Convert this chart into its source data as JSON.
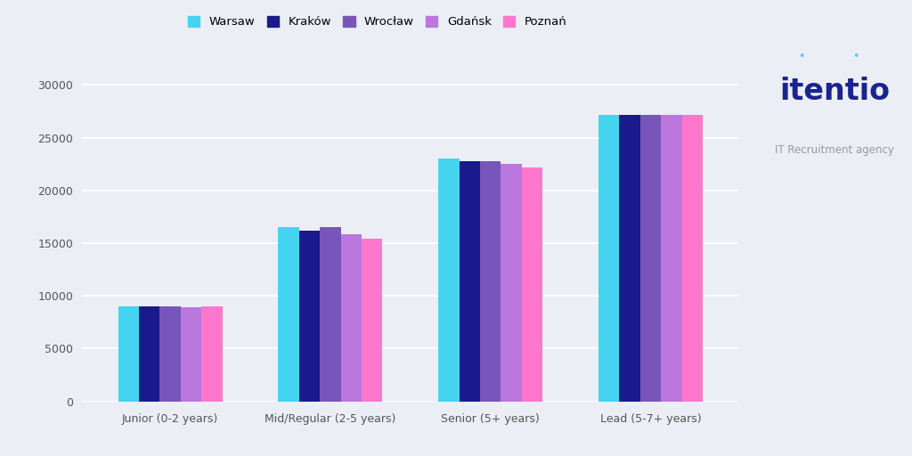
{
  "categories": [
    "Junior (0-2 years)",
    "Mid/Regular (2-5 years)",
    "Senior (5+ years)",
    "Lead (5-7+ years)"
  ],
  "cities": [
    "Warsaw",
    "Kraków",
    "Wrocław",
    "Gdańsk",
    "Poznań"
  ],
  "values": {
    "Warsaw": [
      9000,
      16500,
      23000,
      27200
    ],
    "Kraków": [
      9000,
      16200,
      22800,
      27200
    ],
    "Wrocław": [
      9000,
      16500,
      22800,
      27200
    ],
    "Gdańsk": [
      8900,
      15800,
      22500,
      27200
    ],
    "Poznań": [
      9000,
      15400,
      22200,
      27200
    ]
  },
  "colors": {
    "Warsaw": "#44D4F0",
    "Kraków": "#1A1A8C",
    "Wrocław": "#7755BB",
    "Gdańsk": "#BB77DD",
    "Poznań": "#FF77CC"
  },
  "background_color": "#ECEEF6",
  "ylim": [
    0,
    32000
  ],
  "yticks": [
    0,
    5000,
    10000,
    15000,
    20000,
    25000,
    30000
  ],
  "logo_text_main": "itentio",
  "logo_text_sub": "IT Recruitment agency"
}
